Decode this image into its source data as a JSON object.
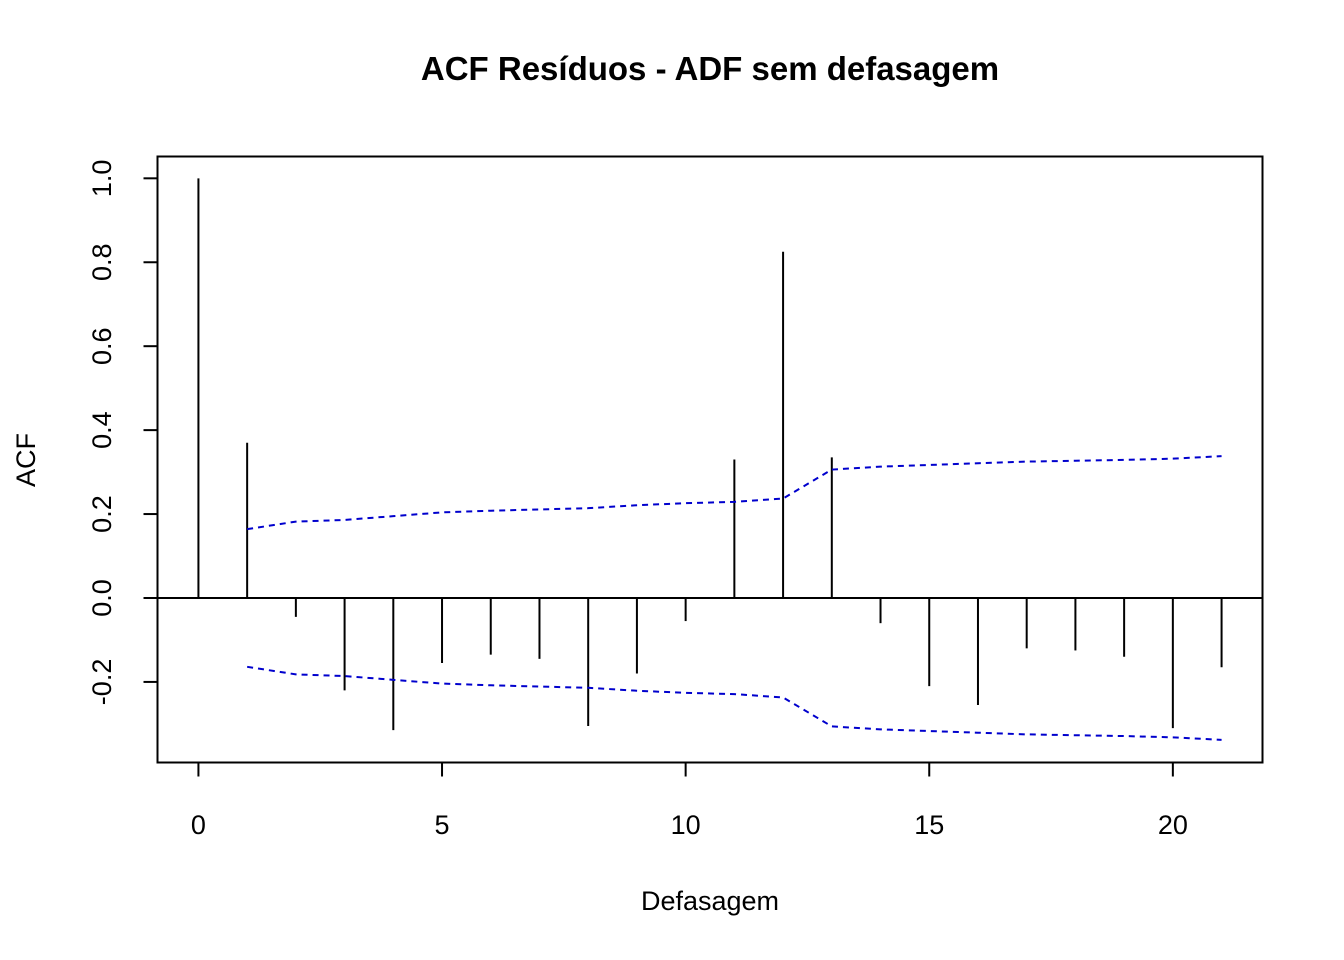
{
  "chart_data": {
    "type": "bar",
    "title": "ACF Resíduos - ADF sem defasagem",
    "xlabel": "Defasagem",
    "ylabel": "ACF",
    "xlim": [
      -0.84,
      21.84
    ],
    "ylim": [
      -0.392,
      1.052
    ],
    "xticks": [
      0,
      5,
      10,
      15,
      20
    ],
    "yticks": [
      -0.2,
      0.0,
      0.2,
      0.4,
      0.6,
      0.8,
      1.0
    ],
    "ytick_labels": [
      "-0.2",
      "0.0",
      "0.2",
      "0.4",
      "0.6",
      "0.8",
      "1.0"
    ],
    "grid": false,
    "zero_line": true,
    "lags": [
      0,
      1,
      2,
      3,
      4,
      5,
      6,
      7,
      8,
      9,
      10,
      11,
      12,
      13,
      14,
      15,
      16,
      17,
      18,
      19,
      20,
      21
    ],
    "acf": [
      1.0,
      0.37,
      -0.045,
      -0.22,
      -0.315,
      -0.155,
      -0.135,
      -0.145,
      -0.305,
      -0.18,
      -0.055,
      0.33,
      0.825,
      0.335,
      -0.06,
      -0.21,
      -0.255,
      -0.12,
      -0.125,
      -0.14,
      -0.31,
      -0.165
    ],
    "confidence_band": {
      "color": "#0000cd",
      "style": "dashed",
      "lags": [
        1,
        2,
        3,
        4,
        5,
        6,
        7,
        8,
        9,
        10,
        11,
        12,
        13,
        14,
        15,
        16,
        17,
        18,
        19,
        20,
        21
      ],
      "upper": [
        0.164,
        0.182,
        0.186,
        0.195,
        0.204,
        0.208,
        0.211,
        0.214,
        0.221,
        0.226,
        0.229,
        0.237,
        0.306,
        0.313,
        0.317,
        0.321,
        0.325,
        0.327,
        0.329,
        0.332,
        0.338
      ],
      "lower": [
        -0.164,
        -0.182,
        -0.186,
        -0.195,
        -0.204,
        -0.208,
        -0.211,
        -0.214,
        -0.221,
        -0.226,
        -0.229,
        -0.237,
        -0.306,
        -0.313,
        -0.317,
        -0.321,
        -0.325,
        -0.327,
        -0.329,
        -0.332,
        -0.338
      ]
    },
    "bar_color": "#000000"
  }
}
